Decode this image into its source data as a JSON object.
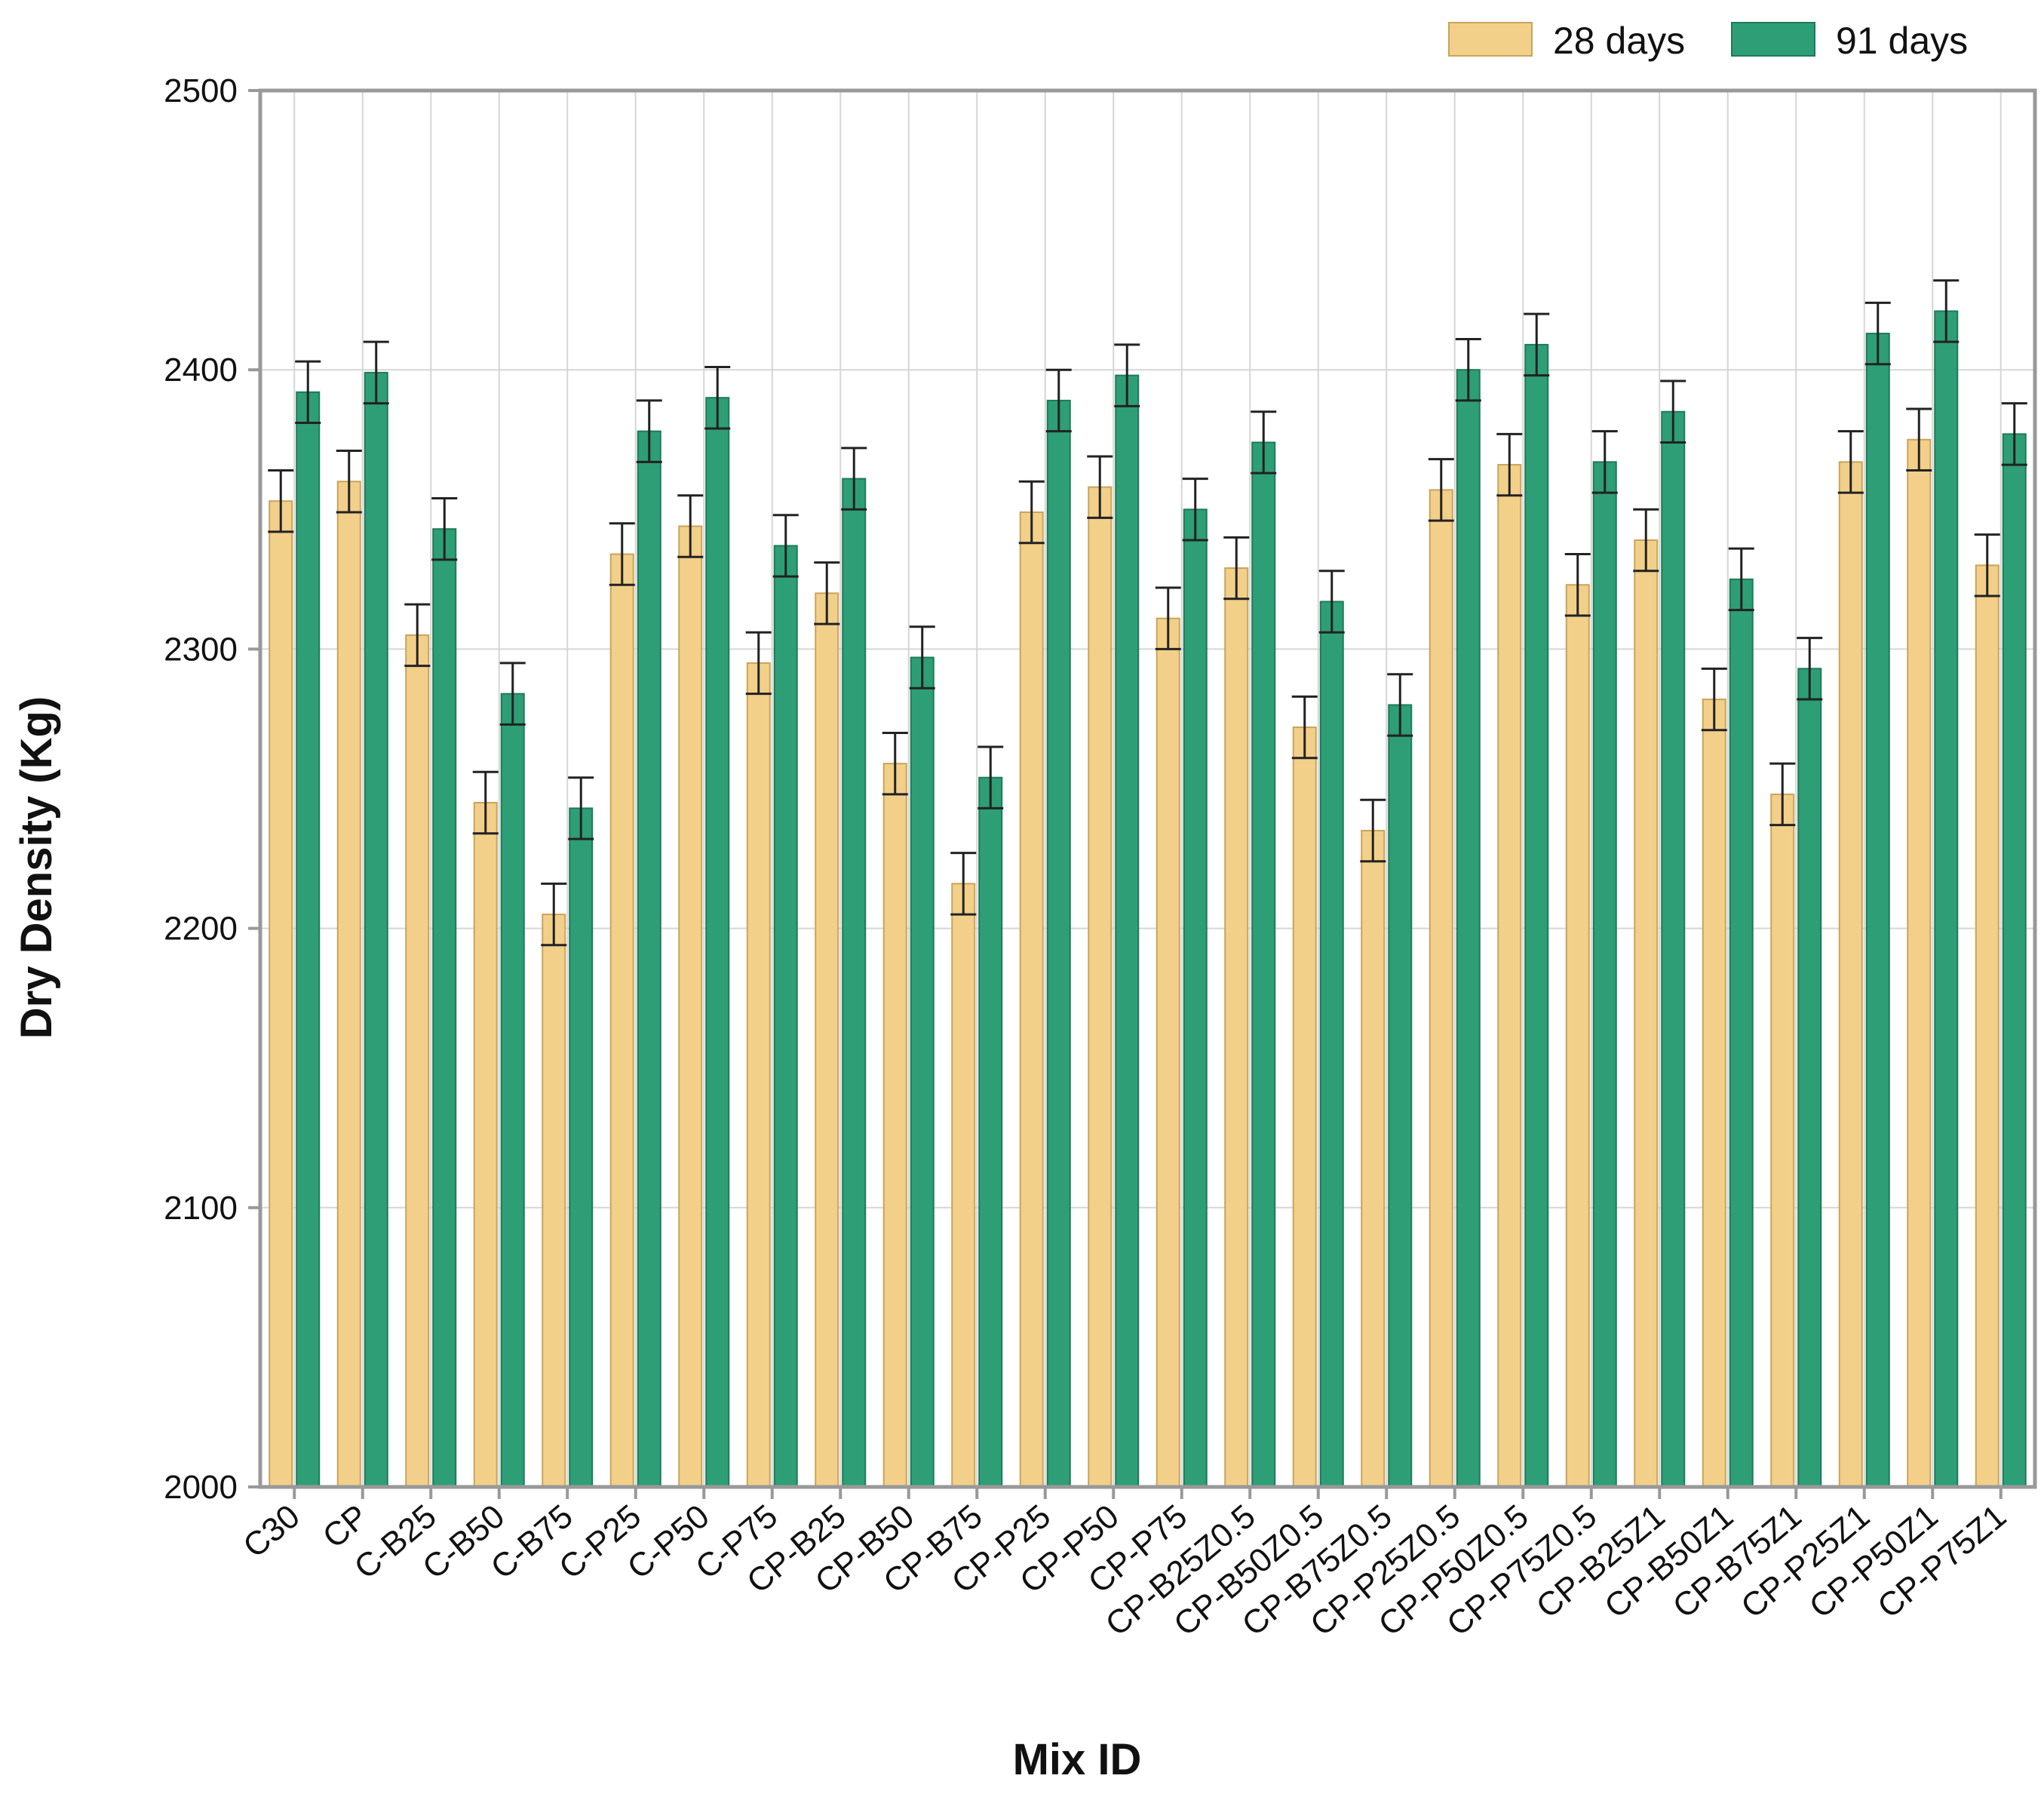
{
  "chart_data": {
    "type": "bar",
    "xlabel": "Mix ID",
    "ylabel": "Dry Density (Kg)",
    "ylim": [
      2000,
      2500
    ],
    "yticks": [
      "2000",
      "2100",
      "2200",
      "2300",
      "2400",
      "2500"
    ],
    "grid": true,
    "legend_position": "top-right",
    "categories": [
      "C30",
      "CP",
      "C-B25",
      "C-B50",
      "C-B75",
      "C-P25",
      "C-P50",
      "C-P75",
      "CP-B25",
      "CP-B50",
      "CP-B75",
      "CP-P25",
      "CP-P50",
      "CP-P75",
      "CP-B25Z0.5",
      "CP-B50Z0.5",
      "CP-B75Z0.5",
      "CP-P25Z0.5",
      "CP-P50Z0.5",
      "CP-P75Z0.5",
      "CP-B25Z1",
      "CP-B50Z1",
      "CP-B75Z1",
      "CP-P25Z1",
      "CP-P50Z1",
      "CP-P75Z1"
    ],
    "series": [
      {
        "name": "28 days",
        "color": "#f2d08a",
        "stroke": "#c9a45a",
        "values": [
          2353,
          2360,
          2305,
          2245,
          2205,
          2334,
          2344,
          2295,
          2320,
          2259,
          2216,
          2349,
          2358,
          2311,
          2329,
          2272,
          2235,
          2357,
          2366,
          2323,
          2339,
          2282,
          2248,
          2367,
          2375,
          2330
        ],
        "errors": [
          11,
          11,
          11,
          11,
          11,
          11,
          11,
          11,
          11,
          11,
          11,
          11,
          11,
          11,
          11,
          11,
          11,
          11,
          11,
          11,
          11,
          11,
          11,
          11,
          11,
          11
        ]
      },
      {
        "name": "91 days",
        "color": "#2e9e76",
        "stroke": "#1f7a58",
        "values": [
          2392,
          2399,
          2343,
          2284,
          2243,
          2378,
          2390,
          2337,
          2361,
          2297,
          2254,
          2389,
          2398,
          2350,
          2374,
          2317,
          2280,
          2400,
          2409,
          2367,
          2385,
          2325,
          2293,
          2413,
          2421,
          2377
        ],
        "errors": [
          11,
          11,
          11,
          11,
          11,
          11,
          11,
          11,
          11,
          11,
          11,
          11,
          11,
          11,
          11,
          11,
          11,
          11,
          11,
          11,
          11,
          11,
          11,
          11,
          11,
          11
        ]
      }
    ]
  }
}
